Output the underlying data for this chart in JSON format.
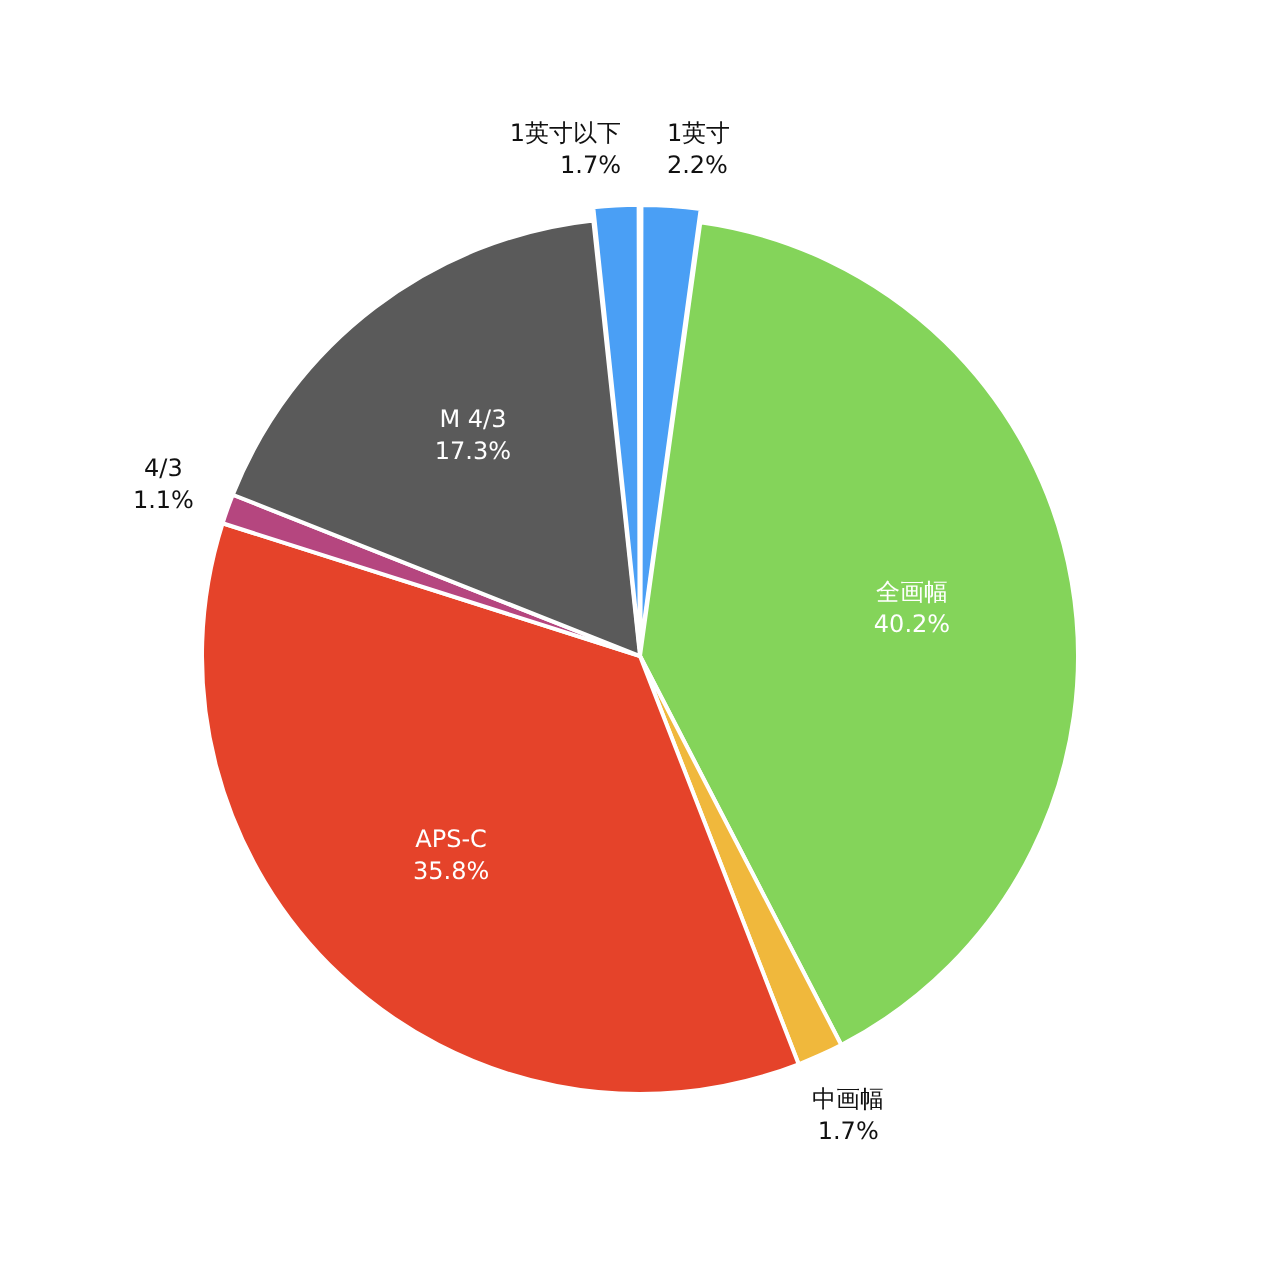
{
  "chart_data": {
    "type": "pie",
    "categories": [
      "1英寸",
      "全画幅",
      "中画幅",
      "APS-C",
      "4/3",
      "M 4/3",
      "1英寸以下"
    ],
    "values": [
      2.2,
      40.2,
      1.7,
      35.8,
      1.1,
      17.3,
      1.7
    ],
    "value_labels": [
      "2.2%",
      "40.2%",
      "1.7%",
      "35.8%",
      "1.1%",
      "17.3%",
      "1.7%"
    ],
    "colors": [
      "#4a9ff5",
      "#84d45a",
      "#f0b83c",
      "#e5432a",
      "#b5467f",
      "#5a5a5a",
      "#4a9ff5"
    ],
    "legend": false
  }
}
